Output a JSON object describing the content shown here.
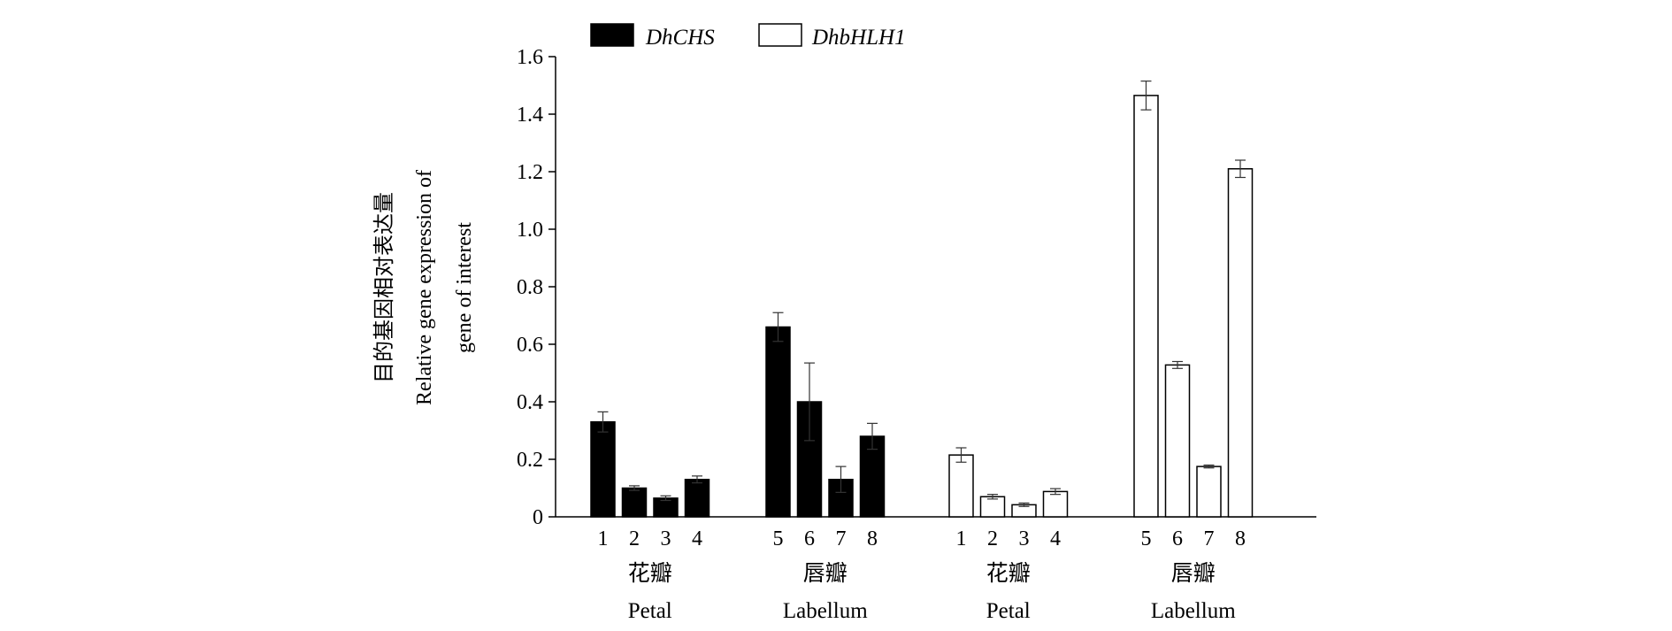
{
  "chart_data": {
    "type": "bar",
    "ylabel": [
      "目的基因相对表达量",
      "Relative gene expression of",
      "gene of interest"
    ],
    "ylim": [
      0,
      1.6
    ],
    "yticks": [
      0,
      0.2,
      0.4,
      0.6,
      0.8,
      1.0,
      1.2,
      1.4,
      1.6
    ],
    "ytick_labels": [
      "0",
      "0.2",
      "0.4",
      "0.6",
      "0.8",
      "1.0",
      "1.2",
      "1.4",
      "1.6"
    ],
    "legend_position": "top-left",
    "series": [
      {
        "name": "DhCHS",
        "color": "#000000",
        "fill": "solid"
      },
      {
        "name": "DhbHLH1",
        "color": "#ffffff",
        "fill": "hollow"
      }
    ],
    "groups": [
      {
        "series": "DhCHS",
        "label_cn": "花瓣",
        "label_en": "Petal",
        "categories": [
          "1",
          "2",
          "3",
          "4"
        ],
        "values": [
          0.33,
          0.1,
          0.065,
          0.13
        ],
        "errors": [
          0.035,
          0.008,
          0.008,
          0.012
        ]
      },
      {
        "series": "DhCHS",
        "label_cn": "唇瓣",
        "label_en": "Labellum",
        "categories": [
          "5",
          "6",
          "7",
          "8"
        ],
        "values": [
          0.66,
          0.4,
          0.13,
          0.28
        ],
        "errors": [
          0.05,
          0.135,
          0.045,
          0.045
        ]
      },
      {
        "series": "DhbHLH1",
        "label_cn": "花瓣",
        "label_en": "Petal",
        "categories": [
          "1",
          "2",
          "3",
          "4"
        ],
        "values": [
          0.215,
          0.07,
          0.042,
          0.088
        ],
        "errors": [
          0.025,
          0.008,
          0.006,
          0.01
        ]
      },
      {
        "series": "DhbHLH1",
        "label_cn": "唇瓣",
        "label_en": "Labellum",
        "categories": [
          "5",
          "6",
          "7",
          "8"
        ],
        "values": [
          1.465,
          0.528,
          0.175,
          1.21
        ],
        "errors": [
          0.05,
          0.012,
          0.005,
          0.03
        ]
      }
    ]
  }
}
